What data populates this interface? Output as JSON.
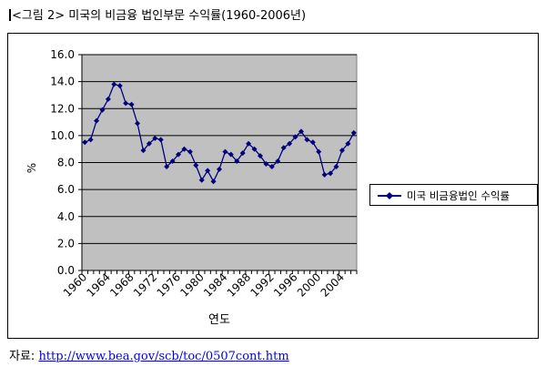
{
  "figure": {
    "title": "그림 2> 미국의 비금융 법인부문 수익률(1960-2006년)",
    "title_prefix": "<"
  },
  "source": {
    "label": "자료: ",
    "url_text": "http://www.bea.gov/scb/toc/0507cont.htm"
  },
  "chart_data": {
    "type": "line",
    "title": "",
    "xlabel": "연도",
    "ylabel": "%",
    "ylim": [
      0,
      16
    ],
    "yticks": [
      "0.0",
      "2.0",
      "4.0",
      "6.0",
      "8.0",
      "10.0",
      "12.0",
      "14.0",
      "16.0"
    ],
    "xtick_labels": [
      "1960",
      "1964",
      "1968",
      "1972",
      "1976",
      "1980",
      "1984",
      "1988",
      "1992",
      "1996",
      "2000",
      "2004"
    ],
    "grid": "horizontal",
    "legend_position": "right",
    "line_color": "#00007f",
    "plot_background": "#c0c0c0",
    "x": [
      1960,
      1961,
      1962,
      1963,
      1964,
      1965,
      1966,
      1967,
      1968,
      1969,
      1970,
      1971,
      1972,
      1973,
      1974,
      1975,
      1976,
      1977,
      1978,
      1979,
      1980,
      1981,
      1982,
      1983,
      1984,
      1985,
      1986,
      1987,
      1988,
      1989,
      1990,
      1991,
      1992,
      1993,
      1994,
      1995,
      1996,
      1997,
      1998,
      1999,
      2000,
      2001,
      2002,
      2003,
      2004,
      2005,
      2006
    ],
    "series": [
      {
        "name": "미국 비금융법인 수익률",
        "values": [
          9.5,
          9.7,
          11.1,
          11.9,
          12.7,
          13.8,
          13.7,
          12.4,
          12.3,
          10.9,
          8.9,
          9.4,
          9.8,
          9.7,
          7.7,
          8.1,
          8.6,
          9.0,
          8.8,
          7.8,
          6.7,
          7.4,
          6.6,
          7.5,
          8.8,
          8.6,
          8.1,
          8.7,
          9.4,
          9.0,
          8.5,
          7.9,
          7.7,
          8.1,
          9.1,
          9.4,
          9.9,
          10.3,
          9.7,
          9.5,
          8.8,
          7.1,
          7.2,
          7.7,
          8.9,
          9.4,
          10.2
        ]
      }
    ]
  }
}
